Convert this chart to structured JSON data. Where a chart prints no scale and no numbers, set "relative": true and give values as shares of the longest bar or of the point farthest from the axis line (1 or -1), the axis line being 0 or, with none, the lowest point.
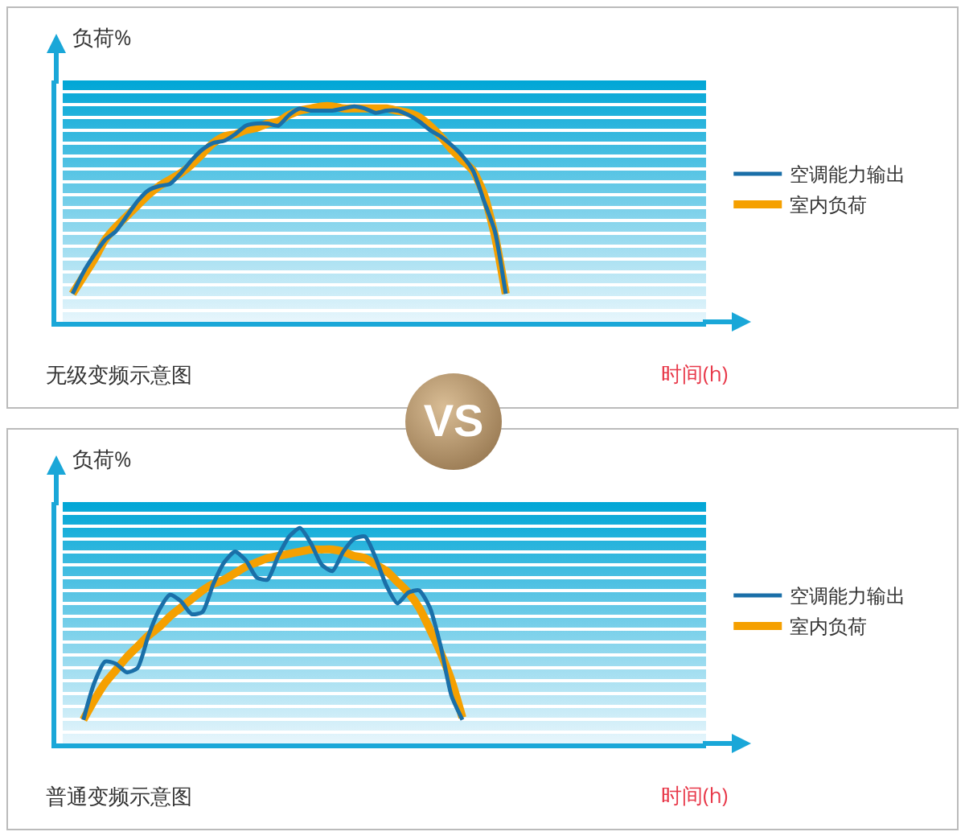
{
  "chart_data": [
    {
      "type": "line",
      "title": "无级变频示意图",
      "xlabel": "时间(h)",
      "ylabel": "负荷%",
      "relative": true,
      "legend": "right",
      "grid": false,
      "marker": "none",
      "line_style": "solid",
      "annotations": [
        "VS"
      ],
      "categories": [
        null,
        null,
        null,
        null,
        null,
        null,
        null,
        null,
        null,
        null,
        null,
        null,
        null,
        null,
        null,
        null,
        null,
        null,
        null,
        null,
        null,
        null,
        null,
        null,
        null,
        null,
        null,
        null,
        null,
        null,
        null,
        null,
        null,
        null,
        null,
        null,
        null,
        null,
        null,
        null,
        null,
        null,
        null,
        null,
        null,
        null,
        null,
        null,
        null,
        null,
        null,
        null,
        null,
        null,
        null,
        null,
        null,
        null,
        null,
        null
      ],
      "series": [
        {
          "name": "室内负荷",
          "color": "#f5a000",
          "values": [
            null,
            0.13,
            0.21,
            0.29,
            0.38,
            0.44,
            0.49,
            0.54,
            0.59,
            0.63,
            0.66,
            0.69,
            0.73,
            0.78,
            0.83,
            0.86,
            0.87,
            0.89,
            0.9,
            0.92,
            0.93,
            0.96,
            0.98,
            0.99,
            1.0,
            1.0,
            0.99,
            0.99,
            0.99,
            0.99,
            0.99,
            0.98,
            0.97,
            0.95,
            0.91,
            0.86,
            0.8,
            0.75,
            0.7,
            0.59,
            0.4,
            0.13,
            null,
            null,
            null,
            null,
            null,
            null,
            null,
            null,
            null,
            null,
            null,
            null,
            null,
            null,
            null,
            null,
            null,
            null
          ]
        },
        {
          "name": "空调能力输出",
          "color": "#1a6fa8",
          "values": [
            null,
            0.13,
            0.23,
            0.31,
            0.38,
            0.42,
            0.49,
            0.56,
            0.61,
            0.63,
            0.64,
            0.69,
            0.75,
            0.8,
            0.83,
            0.84,
            0.87,
            0.91,
            0.92,
            0.92,
            0.91,
            0.96,
            0.99,
            0.98,
            0.98,
            0.98,
            0.99,
            1.0,
            0.99,
            0.97,
            0.98,
            0.98,
            0.96,
            0.93,
            0.89,
            0.86,
            0.82,
            0.77,
            0.7,
            0.56,
            0.42,
            0.13,
            null,
            null,
            null,
            null,
            null,
            null,
            null,
            null,
            null,
            null,
            null,
            null,
            null,
            null,
            null,
            null,
            null,
            null
          ]
        }
      ]
    },
    {
      "type": "line",
      "title": "普通变频示意图",
      "xlabel": "时间(h)",
      "ylabel": "负荷%",
      "relative": true,
      "legend": "right",
      "grid": false,
      "marker": "none",
      "line_style": "solid",
      "categories": [
        null,
        null,
        null,
        null,
        null,
        null,
        null,
        null,
        null,
        null,
        null,
        null,
        null,
        null,
        null,
        null,
        null,
        null,
        null,
        null,
        null,
        null,
        null,
        null,
        null,
        null,
        null,
        null,
        null,
        null,
        null,
        null,
        null,
        null,
        null,
        null,
        null,
        null,
        null,
        null,
        null,
        null,
        null,
        null,
        null,
        null,
        null,
        null,
        null,
        null,
        null,
        null,
        null,
        null,
        null,
        null,
        null,
        null,
        null,
        null
      ],
      "series": [
        {
          "name": "室内负荷",
          "color": "#f5a000",
          "values": [
            null,
            null,
            0.11,
            0.2,
            0.28,
            0.34,
            0.4,
            0.45,
            0.5,
            0.54,
            0.59,
            0.63,
            0.67,
            0.71,
            0.74,
            0.76,
            0.79,
            0.82,
            0.84,
            0.86,
            0.87,
            0.88,
            0.89,
            0.9,
            0.9,
            0.9,
            0.89,
            0.87,
            0.86,
            0.83,
            0.8,
            0.75,
            0.7,
            0.63,
            0.53,
            0.42,
            0.29,
            0.12,
            null,
            null,
            null,
            null,
            null,
            null,
            null,
            null,
            null,
            null,
            null,
            null,
            null,
            null,
            null,
            null,
            null,
            null,
            null,
            null,
            null,
            null
          ]
        },
        {
          "name": "空调能力输出",
          "color": "#1a6fa8",
          "values": [
            null,
            null,
            0.11,
            0.28,
            0.38,
            0.37,
            0.33,
            0.35,
            0.5,
            0.62,
            0.69,
            0.66,
            0.6,
            0.61,
            0.74,
            0.84,
            0.89,
            0.85,
            0.77,
            0.76,
            0.87,
            0.96,
            1.0,
            0.93,
            0.83,
            0.8,
            0.89,
            0.95,
            0.96,
            0.86,
            0.73,
            0.65,
            0.7,
            0.71,
            0.63,
            0.45,
            0.22,
            0.11,
            null,
            null,
            null,
            null,
            null,
            null,
            null,
            null,
            null,
            null,
            null,
            null,
            null,
            null,
            null,
            null,
            null,
            null,
            null,
            null,
            null,
            null
          ]
        }
      ]
    }
  ]
}
